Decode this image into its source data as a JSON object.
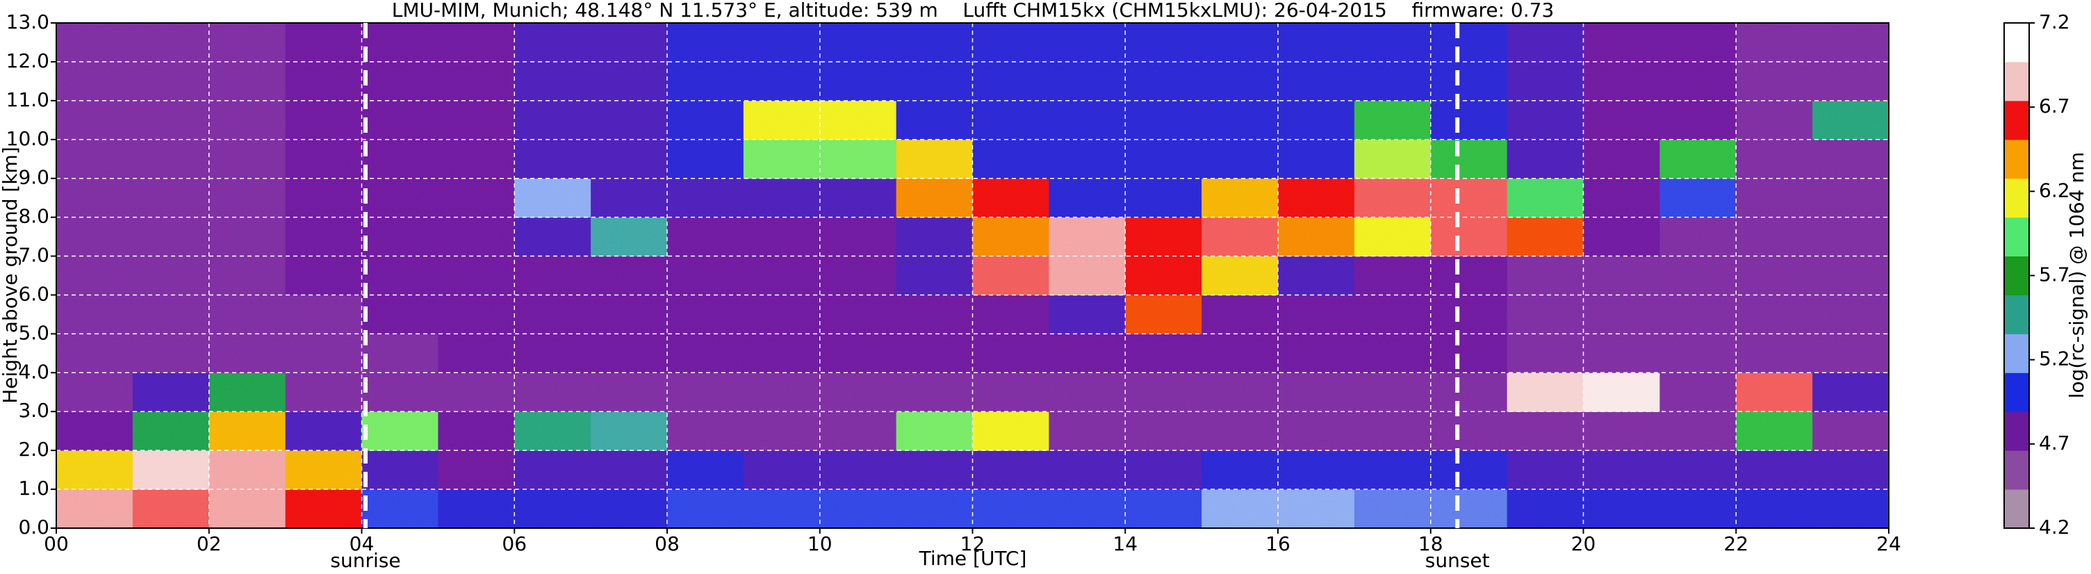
{
  "chart_data": {
    "type": "heatmap",
    "title": "LMU-MIM, Munich; 48.148° N 11.573° E, altitude: 539 m    Lufft CHM15kx (CHM15kxLMU): 26-04-2015    firmware: 0.73",
    "x_label": "Time [UTC]",
    "y_label": "Height above ground [km]",
    "colorbar_label": "log(rc-signal) @ 1064 nm",
    "xlim": [
      0,
      24
    ],
    "ylim": [
      0,
      13
    ],
    "xticks": [
      {
        "value": 0,
        "label": "00"
      },
      {
        "value": 2,
        "label": "02"
      },
      {
        "value": 4,
        "label": "04"
      },
      {
        "value": 6,
        "label": "06"
      },
      {
        "value": 8,
        "label": "08"
      },
      {
        "value": 10,
        "label": "10"
      },
      {
        "value": 12,
        "label": "12"
      },
      {
        "value": 14,
        "label": "14"
      },
      {
        "value": 16,
        "label": "16"
      },
      {
        "value": 18,
        "label": "18"
      },
      {
        "value": 20,
        "label": "20"
      },
      {
        "value": 22,
        "label": "22"
      },
      {
        "value": 24,
        "label": "24"
      }
    ],
    "yticks": [
      {
        "value": 0,
        "label": "0.0"
      },
      {
        "value": 1,
        "label": "1.0"
      },
      {
        "value": 2,
        "label": "2.0"
      },
      {
        "value": 3,
        "label": "3.0"
      },
      {
        "value": 4,
        "label": "4.0"
      },
      {
        "value": 5,
        "label": "5.0"
      },
      {
        "value": 6,
        "label": "6.0"
      },
      {
        "value": 7,
        "label": "7.0"
      },
      {
        "value": 8,
        "label": "8.0"
      },
      {
        "value": 9,
        "label": "9.0"
      },
      {
        "value": 10,
        "label": "10.0"
      },
      {
        "value": 11,
        "label": "11.0"
      },
      {
        "value": 12,
        "label": "12.0"
      },
      {
        "value": 13,
        "label": "13.0"
      }
    ],
    "grid": true,
    "xbins": [
      0,
      1,
      2,
      3,
      4,
      5,
      6,
      7,
      8,
      9,
      10,
      11,
      12,
      13,
      14,
      15,
      16,
      17,
      18,
      19,
      20,
      21,
      22,
      23,
      24
    ],
    "ybins": [
      0,
      1,
      2,
      3,
      4,
      5,
      6,
      7,
      8,
      9,
      10,
      11,
      12,
      13
    ],
    "z": [
      [
        6.9,
        6.8,
        6.9,
        6.7,
        5.0,
        4.9,
        4.9,
        4.9,
        5.0,
        5.0,
        5.0,
        5.0,
        5.0,
        5.0,
        5.0,
        5.2,
        5.2,
        5.1,
        5.1,
        4.9,
        4.9,
        4.9,
        4.9,
        4.9
      ],
      [
        6.3,
        7.0,
        6.9,
        6.4,
        4.8,
        4.7,
        4.8,
        4.8,
        4.9,
        4.8,
        4.8,
        4.8,
        4.8,
        4.8,
        4.8,
        4.9,
        4.9,
        4.9,
        4.9,
        4.8,
        4.8,
        4.8,
        4.8,
        4.8
      ],
      [
        4.7,
        5.6,
        6.4,
        4.8,
        6.0,
        4.7,
        5.5,
        5.4,
        4.6,
        4.6,
        4.6,
        6.0,
        6.2,
        4.6,
        4.6,
        4.6,
        4.6,
        4.6,
        4.6,
        4.6,
        4.6,
        4.6,
        5.8,
        4.6
      ],
      [
        4.6,
        4.8,
        5.6,
        4.6,
        4.6,
        4.6,
        4.6,
        4.6,
        4.6,
        4.6,
        4.6,
        4.6,
        4.6,
        4.6,
        4.6,
        4.6,
        4.6,
        4.6,
        4.6,
        7.0,
        7.1,
        4.6,
        6.8,
        4.8
      ],
      [
        4.6,
        4.6,
        4.6,
        4.6,
        4.6,
        4.7,
        4.7,
        4.7,
        4.7,
        4.7,
        4.7,
        4.7,
        4.7,
        4.7,
        4.7,
        4.7,
        4.7,
        4.7,
        4.7,
        4.6,
        4.6,
        4.6,
        4.6,
        4.6
      ],
      [
        4.6,
        4.6,
        4.6,
        4.6,
        4.7,
        4.7,
        4.7,
        4.7,
        4.7,
        4.7,
        4.7,
        4.7,
        4.7,
        4.8,
        6.6,
        4.7,
        4.7,
        4.7,
        4.7,
        4.6,
        4.6,
        4.6,
        4.6,
        4.6
      ],
      [
        4.6,
        4.6,
        4.6,
        4.7,
        4.7,
        4.7,
        4.7,
        4.7,
        4.7,
        4.7,
        4.7,
        4.8,
        6.8,
        6.9,
        6.7,
        6.3,
        4.8,
        4.7,
        4.7,
        4.6,
        4.6,
        4.6,
        4.6,
        4.6
      ],
      [
        4.6,
        4.6,
        4.6,
        4.7,
        4.7,
        4.7,
        4.8,
        5.4,
        4.7,
        4.7,
        4.7,
        4.8,
        6.5,
        6.9,
        6.7,
        6.8,
        6.5,
        6.2,
        6.8,
        6.6,
        4.7,
        4.6,
        4.6,
        4.6
      ],
      [
        4.6,
        4.6,
        4.6,
        4.7,
        4.7,
        4.7,
        5.2,
        4.8,
        4.8,
        4.8,
        4.8,
        6.5,
        6.7,
        4.9,
        4.9,
        6.4,
        6.7,
        6.8,
        6.8,
        5.9,
        4.7,
        5.0,
        4.6,
        4.6
      ],
      [
        4.6,
        4.6,
        4.6,
        4.7,
        4.7,
        4.7,
        4.8,
        4.8,
        4.9,
        6.0,
        6.0,
        6.3,
        4.9,
        4.9,
        4.9,
        4.9,
        4.9,
        6.1,
        5.8,
        4.8,
        4.7,
        5.8,
        4.6,
        4.6
      ],
      [
        4.6,
        4.6,
        4.6,
        4.7,
        4.7,
        4.7,
        4.8,
        4.8,
        4.9,
        6.2,
        6.2,
        4.9,
        4.9,
        4.9,
        4.9,
        4.9,
        4.9,
        5.8,
        4.9,
        4.8,
        4.7,
        4.7,
        4.6,
        5.5
      ],
      [
        4.6,
        4.6,
        4.6,
        4.7,
        4.7,
        4.7,
        4.8,
        4.8,
        4.9,
        4.9,
        4.9,
        4.9,
        4.9,
        4.9,
        4.9,
        4.9,
        4.9,
        4.9,
        4.9,
        4.8,
        4.7,
        4.7,
        4.6,
        4.6
      ],
      [
        4.6,
        4.6,
        4.6,
        4.7,
        4.7,
        4.7,
        4.8,
        4.8,
        4.9,
        4.9,
        4.9,
        4.9,
        4.9,
        4.9,
        4.9,
        4.9,
        4.9,
        4.9,
        4.9,
        4.8,
        4.7,
        4.7,
        4.6,
        4.6
      ]
    ],
    "clim": [
      4.2,
      7.2
    ],
    "cticks": [
      4.2,
      4.7,
      5.2,
      5.7,
      6.2,
      6.7,
      7.2
    ],
    "colorscale": [
      "#a990a8",
      "#8a4aa0",
      "#6a1a9a",
      "#1a2ae0",
      "#88a8f2",
      "#2aa08a",
      "#1a9a20",
      "#50e870",
      "#f0f020",
      "#f8a000",
      "#f01010",
      "#f2c4c4",
      "#ffffff"
    ],
    "annotations": [
      {
        "text": "sunrise",
        "x": 4.05
      },
      {
        "text": "sunset",
        "x": 18.35
      }
    ]
  }
}
